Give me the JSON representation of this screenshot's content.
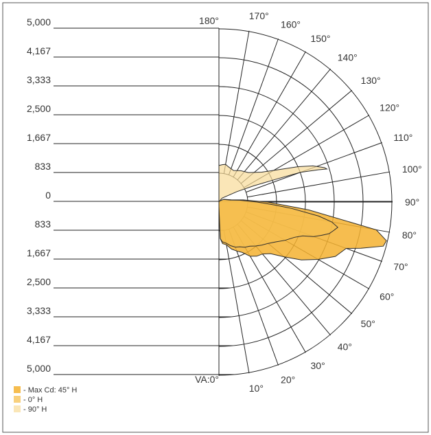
{
  "chart_data": {
    "type": "polar",
    "radial_axis": {
      "ticks_upper": [
        "5,000",
        "4,167",
        "3,333",
        "2,500",
        "1,667",
        "833"
      ],
      "tick_zero": "0",
      "ticks_lower": [
        "833",
        "1,667",
        "2,500",
        "3,333",
        "4,167",
        "5,000"
      ],
      "max": 5000
    },
    "angle_labels": [
      "VA:0°",
      "10°",
      "20°",
      "30°",
      "40°",
      "50°",
      "60°",
      "70°",
      "80°",
      "90°",
      "100°",
      "110°",
      "120°",
      "130°",
      "140°",
      "150°",
      "160°",
      "170°",
      "180°"
    ],
    "series": [
      {
        "name": "- Max Cd: 45° H",
        "color": "#f5b130",
        "opacity": 0.85,
        "points": [
          [
            180,
            5
          ],
          [
            150,
            35
          ],
          [
            120,
            160
          ],
          [
            100,
            360
          ],
          [
            95,
            700
          ],
          [
            90,
            1400
          ],
          [
            85,
            2600
          ],
          [
            80,
            4600
          ],
          [
            77,
            4950
          ],
          [
            75,
            4900
          ],
          [
            72,
            4300
          ],
          [
            70,
            3900
          ],
          [
            65,
            3700
          ],
          [
            60,
            3300
          ],
          [
            55,
            2900
          ],
          [
            50,
            2450
          ],
          [
            45,
            2100
          ],
          [
            40,
            1950
          ],
          [
            35,
            1900
          ],
          [
            30,
            1800
          ],
          [
            25,
            1600
          ],
          [
            20,
            1500
          ],
          [
            15,
            1400
          ],
          [
            10,
            1250
          ],
          [
            5,
            1200
          ],
          [
            2,
            1050
          ],
          [
            0,
            150
          ]
        ]
      },
      {
        "name": "- 0° H",
        "color": "#f5c050",
        "opacity": 0.75,
        "points": [
          [
            180,
            5
          ],
          [
            150,
            30
          ],
          [
            120,
            150
          ],
          [
            100,
            330
          ],
          [
            95,
            600
          ],
          [
            90,
            1100
          ],
          [
            87,
            1600
          ],
          [
            85,
            2100
          ],
          [
            82,
            2900
          ],
          [
            80,
            3300
          ],
          [
            78,
            3500
          ],
          [
            76,
            3400
          ],
          [
            74,
            3300
          ],
          [
            72,
            3100
          ],
          [
            70,
            2900
          ],
          [
            68,
            2600
          ],
          [
            65,
            2400
          ],
          [
            60,
            2200
          ],
          [
            55,
            2000
          ],
          [
            50,
            1850
          ],
          [
            45,
            1750
          ],
          [
            40,
            1650
          ],
          [
            35,
            1550
          ],
          [
            30,
            1500
          ],
          [
            25,
            1420
          ],
          [
            20,
            1380
          ],
          [
            15,
            1300
          ],
          [
            10,
            1200
          ],
          [
            5,
            1150
          ],
          [
            2,
            1050
          ],
          [
            0,
            120
          ]
        ]
      },
      {
        "name": "- 90° H",
        "color": "#f8dc98",
        "opacity": 0.7,
        "points": [
          [
            180,
            10
          ],
          [
            140,
            150
          ],
          [
            120,
            600
          ],
          [
            115,
            1100
          ],
          [
            112,
            1700
          ],
          [
            110,
            2500
          ],
          [
            108,
            3000
          ],
          [
            107,
            3250
          ],
          [
            108,
            3200
          ],
          [
            111,
            2900
          ],
          [
            114,
            2500
          ],
          [
            118,
            2000
          ],
          [
            125,
            1500
          ],
          [
            135,
            1200
          ],
          [
            145,
            1100
          ],
          [
            155,
            1000
          ],
          [
            165,
            1050
          ],
          [
            170,
            1100
          ],
          [
            175,
            1080
          ],
          [
            180,
            1050
          ]
        ]
      }
    ],
    "legend": {
      "placement": "bottom-left"
    }
  }
}
